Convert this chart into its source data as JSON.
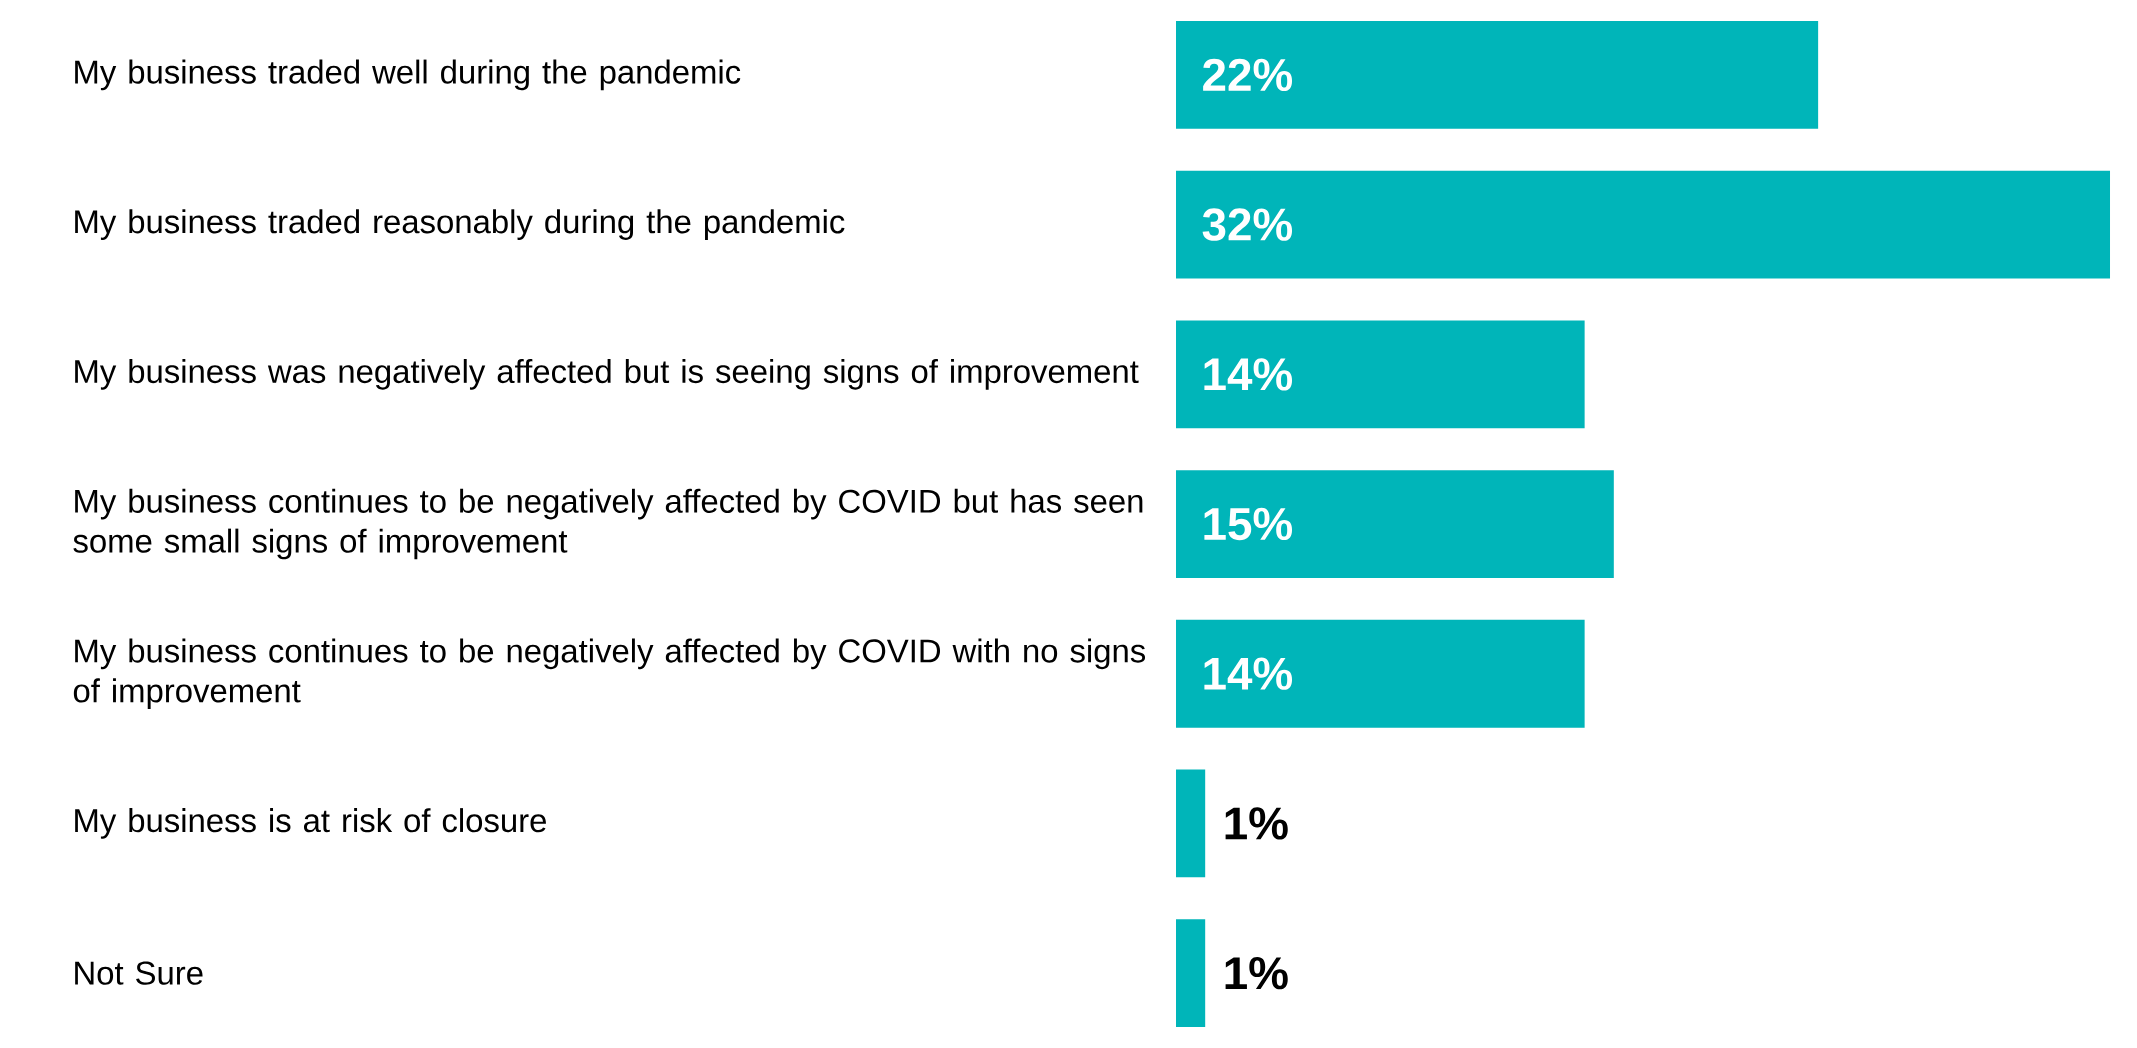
{
  "chart_data": {
    "type": "bar",
    "orientation": "horizontal",
    "categories": [
      "My business traded well during the pandemic",
      "My business traded reasonably during the pandemic",
      "My business was negatively affected but is seeing signs of improvement",
      "My business continues to be negatively affected by COVID but has seen some small signs of improvement",
      "My business continues to be negatively affected by COVID with no signs of improvement",
      "My business is at risk of closure",
      "Not Sure"
    ],
    "values": [
      22,
      32,
      14,
      15,
      14,
      1,
      1
    ],
    "value_labels": [
      "22%",
      "32%",
      "14%",
      "15%",
      "14%",
      "1%",
      "1%"
    ],
    "color": "#00b5b9"
  }
}
